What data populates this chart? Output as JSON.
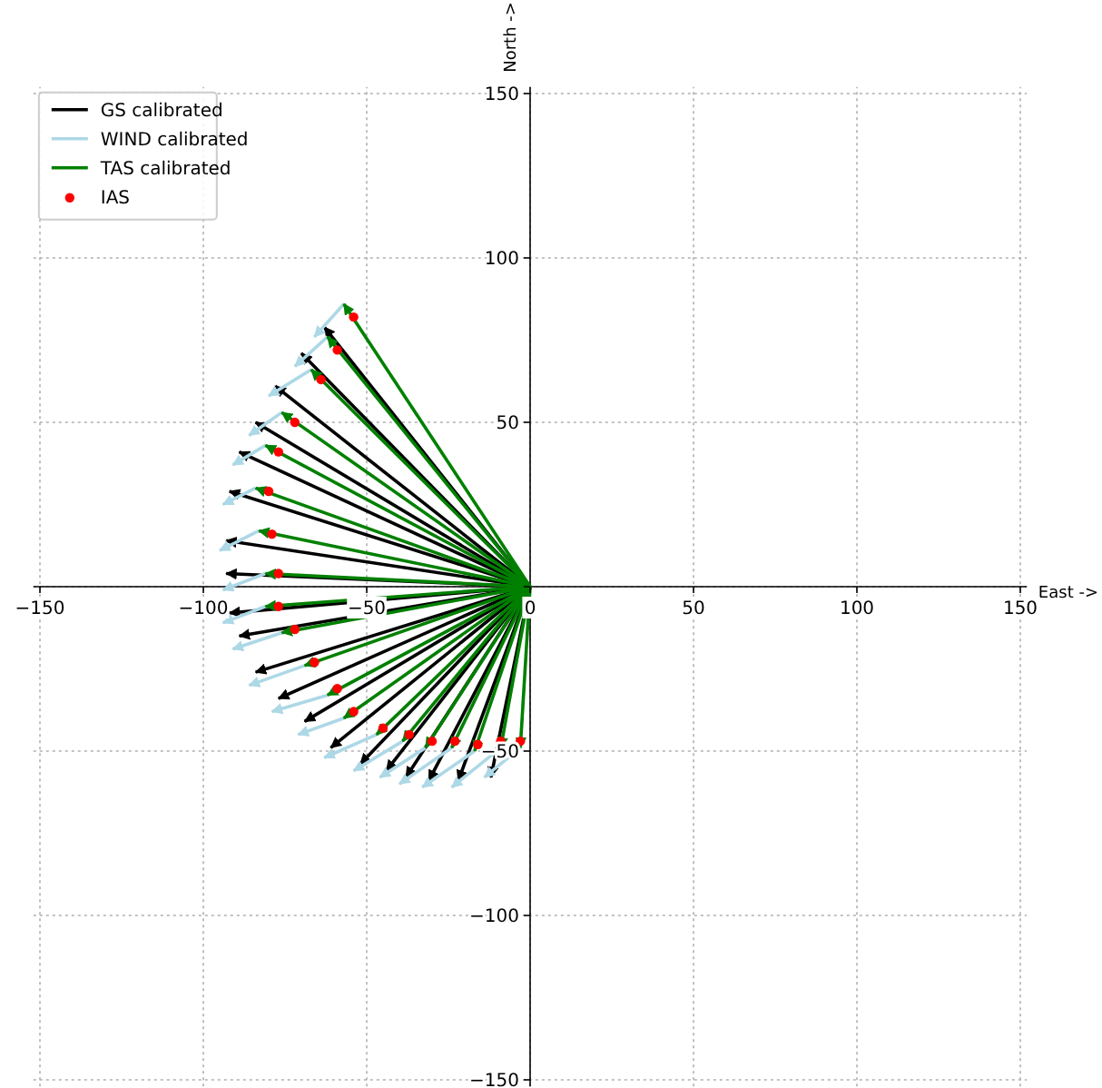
{
  "chart_data": {
    "type": "line",
    "xlabel": "East ->",
    "ylabel": "North ->",
    "xlim": [
      -152,
      152
    ],
    "ylim": [
      -152,
      152
    ],
    "xticks": [
      {
        "value": -150,
        "label": "−150"
      },
      {
        "value": -100,
        "label": "−100"
      },
      {
        "value": -50,
        "label": "−50"
      },
      0,
      50,
      100,
      150
    ],
    "yticks": [
      {
        "value": -150,
        "label": "−150"
      },
      {
        "value": -100,
        "label": "−100"
      },
      {
        "value": -50,
        "label": "−50"
      },
      {
        "value": 0,
        "label": null
      },
      50,
      100,
      150
    ],
    "grid": true,
    "legend": "top left",
    "series": [
      {
        "name": "GS calibrated",
        "color": "#000000",
        "x": [
          0,
          -63
        ],
        "values": [
          0,
          79
        ]
      },
      {
        "color": "#000000",
        "x": [
          0,
          -70
        ],
        "values": [
          0,
          71
        ]
      },
      {
        "color": "#000000",
        "x": [
          0,
          -78
        ],
        "values": [
          0,
          61
        ]
      },
      {
        "color": "#000000",
        "x": [
          0,
          -84
        ],
        "values": [
          0,
          50
        ]
      },
      {
        "color": "#000000",
        "x": [
          0,
          -89
        ],
        "values": [
          0,
          41
        ]
      },
      {
        "color": "#000000",
        "x": [
          0,
          -92
        ],
        "values": [
          0,
          29
        ]
      },
      {
        "color": "#000000",
        "x": [
          0,
          -93
        ],
        "values": [
          0,
          14
        ]
      },
      {
        "color": "#000000",
        "x": [
          0,
          -93
        ],
        "values": [
          0,
          4
        ]
      },
      {
        "color": "#000000",
        "x": [
          0,
          -92
        ],
        "values": [
          0,
          -8
        ]
      },
      {
        "color": "#000000",
        "x": [
          0,
          -89
        ],
        "values": [
          0,
          -15
        ]
      },
      {
        "color": "#000000",
        "x": [
          0,
          -84
        ],
        "values": [
          0,
          -26
        ]
      },
      {
        "color": "#000000",
        "x": [
          0,
          -77
        ],
        "values": [
          0,
          -34
        ]
      },
      {
        "color": "#000000",
        "x": [
          0,
          -69
        ],
        "values": [
          0,
          -41
        ]
      },
      {
        "color": "#000000",
        "x": [
          0,
          -61
        ],
        "values": [
          0,
          -49
        ]
      },
      {
        "color": "#000000",
        "x": [
          0,
          -52
        ],
        "values": [
          0,
          -54
        ]
      },
      {
        "color": "#000000",
        "x": [
          0,
          -44
        ],
        "values": [
          0,
          -56
        ]
      },
      {
        "color": "#000000",
        "x": [
          0,
          -38
        ],
        "values": [
          0,
          -58
        ]
      },
      {
        "color": "#000000",
        "x": [
          0,
          -31
        ],
        "values": [
          0,
          -59
        ]
      },
      {
        "color": "#000000",
        "x": [
          0,
          -22
        ],
        "values": [
          0,
          -59
        ]
      },
      {
        "color": "#000000",
        "x": [
          0,
          -12
        ],
        "values": [
          0,
          -58
        ]
      },
      {
        "name": "WIND calibrated",
        "color": "#add8e6",
        "x": [
          -57,
          -66
        ],
        "values": [
          86,
          76
        ]
      },
      {
        "color": "#add8e6",
        "x": [
          -62,
          -72
        ],
        "values": [
          76,
          67
        ]
      },
      {
        "color": "#add8e6",
        "x": [
          -67,
          -80
        ],
        "values": [
          66,
          58
        ]
      },
      {
        "color": "#add8e6",
        "x": [
          -76,
          -86
        ],
        "values": [
          53,
          46
        ]
      },
      {
        "color": "#add8e6",
        "x": [
          -81,
          -91
        ],
        "values": [
          43,
          37
        ]
      },
      {
        "color": "#add8e6",
        "x": [
          -84,
          -94
        ],
        "values": [
          30,
          25
        ]
      },
      {
        "color": "#add8e6",
        "x": [
          -83,
          -95
        ],
        "values": [
          17,
          11
        ]
      },
      {
        "color": "#add8e6",
        "x": [
          -81,
          -94
        ],
        "values": [
          4,
          -1
        ]
      },
      {
        "color": "#add8e6",
        "x": [
          -81,
          -94
        ],
        "values": [
          -6,
          -11
        ]
      },
      {
        "color": "#add8e6",
        "x": [
          -76,
          -91
        ],
        "values": [
          -14,
          -19
        ]
      },
      {
        "color": "#add8e6",
        "x": [
          -69,
          -86
        ],
        "values": [
          -24,
          -30
        ]
      },
      {
        "color": "#add8e6",
        "x": [
          -62,
          -79
        ],
        "values": [
          -33,
          -38
        ]
      },
      {
        "color": "#add8e6",
        "x": [
          -57,
          -71
        ],
        "values": [
          -40,
          -45
        ]
      },
      {
        "color": "#add8e6",
        "x": [
          -47,
          -63
        ],
        "values": [
          -45,
          -52
        ]
      },
      {
        "color": "#add8e6",
        "x": [
          -39,
          -54
        ],
        "values": [
          -47,
          -56
        ]
      },
      {
        "color": "#add8e6",
        "x": [
          -32,
          -46
        ],
        "values": [
          -49,
          -58
        ]
      },
      {
        "color": "#add8e6",
        "x": [
          -24,
          -40
        ],
        "values": [
          -49,
          -60
        ]
      },
      {
        "color": "#add8e6",
        "x": [
          -17,
          -33
        ],
        "values": [
          -50,
          -61
        ]
      },
      {
        "color": "#add8e6",
        "x": [
          -9,
          -24
        ],
        "values": [
          -49,
          -61
        ]
      },
      {
        "color": "#add8e6",
        "x": [
          -3,
          -14
        ],
        "values": [
          -49,
          -58
        ]
      },
      {
        "name": "TAS calibrated",
        "color": "#008000",
        "x": [
          0,
          -57
        ],
        "values": [
          0,
          86
        ]
      },
      {
        "color": "#008000",
        "x": [
          0,
          -62
        ],
        "values": [
          0,
          76
        ]
      },
      {
        "color": "#008000",
        "x": [
          0,
          -67
        ],
        "values": [
          0,
          66
        ]
      },
      {
        "color": "#008000",
        "x": [
          0,
          -76
        ],
        "values": [
          0,
          53
        ]
      },
      {
        "color": "#008000",
        "x": [
          0,
          -81
        ],
        "values": [
          0,
          43
        ]
      },
      {
        "color": "#008000",
        "x": [
          0,
          -84
        ],
        "values": [
          0,
          30
        ]
      },
      {
        "color": "#008000",
        "x": [
          0,
          -83
        ],
        "values": [
          0,
          17
        ]
      },
      {
        "color": "#008000",
        "x": [
          0,
          -81
        ],
        "values": [
          0,
          4
        ]
      },
      {
        "color": "#008000",
        "x": [
          0,
          -81
        ],
        "values": [
          0,
          -6
        ]
      },
      {
        "color": "#008000",
        "x": [
          0,
          -76
        ],
        "values": [
          0,
          -14
        ]
      },
      {
        "color": "#008000",
        "x": [
          0,
          -69
        ],
        "values": [
          0,
          -24
        ]
      },
      {
        "color": "#008000",
        "x": [
          0,
          -62
        ],
        "values": [
          0,
          -33
        ]
      },
      {
        "color": "#008000",
        "x": [
          0,
          -57
        ],
        "values": [
          0,
          -40
        ]
      },
      {
        "color": "#008000",
        "x": [
          0,
          -47
        ],
        "values": [
          0,
          -45
        ]
      },
      {
        "color": "#008000",
        "x": [
          0,
          -39
        ],
        "values": [
          0,
          -47
        ]
      },
      {
        "color": "#008000",
        "x": [
          0,
          -32
        ],
        "values": [
          0,
          -49
        ]
      },
      {
        "color": "#008000",
        "x": [
          0,
          -24
        ],
        "values": [
          0,
          -49
        ]
      },
      {
        "color": "#008000",
        "x": [
          0,
          -17
        ],
        "values": [
          0,
          -50
        ]
      },
      {
        "color": "#008000",
        "x": [
          0,
          -9
        ],
        "values": [
          0,
          -49
        ]
      },
      {
        "color": "#008000",
        "x": [
          0,
          -3
        ],
        "values": [
          0,
          -49
        ]
      },
      {
        "name": "IAS",
        "color": "#ff0000",
        "type": "scatter",
        "marker": "circle",
        "x": [
          -54,
          -59,
          -64,
          -72,
          -77,
          -80,
          -79,
          -77,
          -77,
          -72,
          -66,
          -59,
          -54,
          -45,
          -37,
          -30,
          -23,
          -16,
          -9,
          -3
        ],
        "values": [
          82,
          72,
          63,
          50,
          41,
          29,
          16,
          4,
          -6,
          -13,
          -23,
          -31,
          -38,
          -43,
          -45,
          -47,
          -47,
          -48,
          -47,
          -47
        ]
      }
    ]
  }
}
